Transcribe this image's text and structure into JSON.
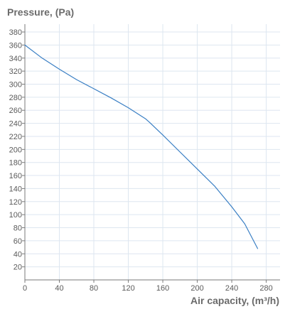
{
  "chart_data": {
    "type": "line",
    "title": "",
    "xlabel": "Air capacity, (m³/h)",
    "ylabel": "Pressure, (Pa)",
    "xlim": [
      0,
      296
    ],
    "ylim": [
      0,
      392
    ],
    "x_ticks": [
      0,
      40,
      80,
      120,
      160,
      200,
      240,
      280
    ],
    "y_ticks": [
      20,
      40,
      60,
      80,
      100,
      120,
      140,
      160,
      180,
      200,
      220,
      240,
      260,
      280,
      300,
      320,
      340,
      360,
      380
    ],
    "grid": true,
    "legend": "none",
    "colors": {
      "line": "#3a7fc4",
      "grid": "#dde6f0",
      "axis": "#7a7a7a",
      "text": "#5a5a5a",
      "title": "#6b6b6b"
    },
    "series": [
      {
        "name": "",
        "x": [
          0,
          20,
          40,
          60,
          80,
          100,
          120,
          140,
          145,
          160,
          180,
          200,
          220,
          240,
          255,
          270
        ],
        "y": [
          360,
          340,
          323,
          307,
          293,
          279,
          264,
          247,
          241,
          222,
          196,
          170,
          144,
          112,
          86,
          48
        ]
      }
    ]
  }
}
